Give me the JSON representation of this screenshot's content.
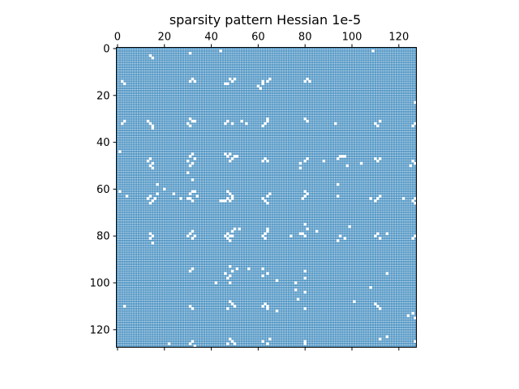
{
  "chart_data": {
    "type": "heatmap",
    "title": "sparsity pattern Hessian 1e-5",
    "xlabel": "",
    "ylabel": "",
    "matrix_size": 128,
    "xlim": [
      0,
      128
    ],
    "ylim": [
      128,
      0
    ],
    "x_ticks": [
      0,
      20,
      40,
      60,
      80,
      100,
      120
    ],
    "y_ticks": [
      0,
      20,
      40,
      60,
      80,
      100,
      120
    ],
    "x_axis_position": "top",
    "marker_color": "#1f77b4",
    "background_color": "#ffffff",
    "zero_entries_note": "entries not drawn are zero",
    "zero_entries": [
      [
        3,
        14
      ],
      [
        4,
        15
      ],
      [
        2,
        31
      ],
      [
        1,
        44
      ],
      [
        1,
        109
      ],
      [
        13,
        32
      ],
      [
        14,
        33
      ],
      [
        14,
        31
      ],
      [
        13,
        48
      ],
      [
        14,
        49
      ],
      [
        15,
        46
      ],
      [
        15,
        47
      ],
      [
        13,
        50
      ],
      [
        14,
        62
      ],
      [
        15,
        62
      ],
      [
        16,
        60
      ],
      [
        17,
        61
      ],
      [
        13,
        65
      ],
      [
        14,
        64
      ],
      [
        14,
        80
      ],
      [
        13,
        81
      ],
      [
        14,
        82
      ],
      [
        14,
        2
      ],
      [
        15,
        3
      ],
      [
        23,
        127
      ],
      [
        30,
        31
      ],
      [
        31,
        32
      ],
      [
        31,
        33
      ],
      [
        32,
        30
      ],
      [
        33,
        31
      ],
      [
        32,
        14
      ],
      [
        33,
        15
      ],
      [
        34,
        15
      ],
      [
        31,
        13
      ],
      [
        31,
        47
      ],
      [
        32,
        46
      ],
      [
        32,
        49
      ],
      [
        31,
        53
      ],
      [
        32,
        55
      ],
      [
        32,
        63
      ],
      [
        31,
        64
      ],
      [
        33,
        62
      ],
      [
        30,
        64
      ],
      [
        31,
        81
      ],
      [
        30,
        80
      ],
      [
        32,
        110
      ],
      [
        33,
        111
      ],
      [
        31,
        112
      ],
      [
        32,
        93
      ],
      [
        32,
        127
      ],
      [
        33,
        126
      ],
      [
        31,
        3
      ],
      [
        32,
        2
      ],
      [
        45,
        32
      ],
      [
        46,
        31
      ],
      [
        47,
        33
      ],
      [
        48,
        30
      ],
      [
        49,
        32
      ],
      [
        50,
        31
      ],
      [
        45,
        48
      ],
      [
        46,
        47
      ],
      [
        46,
        50
      ],
      [
        46,
        51
      ],
      [
        45,
        46
      ],
      [
        47,
        49
      ],
      [
        48,
        48
      ],
      [
        44,
        1
      ],
      [
        47,
        14
      ],
      [
        48,
        13
      ],
      [
        49,
        15
      ],
      [
        50,
        14
      ],
      [
        51,
        15
      ],
      [
        46,
        95
      ],
      [
        46,
        96
      ],
      [
        46,
        97
      ],
      [
        47,
        94
      ],
      [
        47,
        63
      ],
      [
        48,
        64
      ],
      [
        47,
        81
      ],
      [
        48,
        80
      ],
      [
        49,
        78
      ],
      [
        47,
        110
      ],
      [
        48,
        111
      ],
      [
        47,
        112
      ],
      [
        48,
        126
      ],
      [
        49,
        127
      ],
      [
        50,
        125
      ],
      [
        48,
        88
      ],
      [
        53,
        30
      ],
      [
        50,
        98
      ],
      [
        51,
        78
      ],
      [
        49,
        104
      ],
      [
        48,
        62
      ],
      [
        61,
        33
      ],
      [
        61,
        32
      ],
      [
        62,
        31
      ],
      [
        63,
        34
      ],
      [
        64,
        31
      ],
      [
        65,
        32
      ],
      [
        64,
        30
      ],
      [
        64,
        47
      ],
      [
        65,
        46
      ],
      [
        65,
        45
      ],
      [
        65,
        44
      ],
      [
        65,
        48
      ],
      [
        64,
        49
      ],
      [
        63,
        49
      ],
      [
        62,
        48
      ],
      [
        61,
        47
      ],
      [
        63,
        14
      ],
      [
        64,
        13
      ],
      [
        65,
        15
      ],
      [
        66,
        14
      ],
      [
        64,
        16
      ],
      [
        62,
        17
      ],
      [
        61,
        1
      ],
      [
        64,
        62
      ],
      [
        65,
        63
      ],
      [
        63,
        64
      ],
      [
        62,
        65
      ],
      [
        64,
        79
      ],
      [
        63,
        80
      ],
      [
        62,
        81
      ],
      [
        61,
        80
      ],
      [
        65,
        110
      ],
      [
        64,
        111
      ],
      [
        63,
        112
      ],
      [
        64,
        108
      ],
      [
        64,
        127
      ],
      [
        65,
        126
      ],
      [
        66,
        127
      ],
      [
        64,
        122
      ],
      [
        63,
        94
      ],
      [
        62,
        24
      ],
      [
        64,
        27
      ],
      [
        66,
        64
      ],
      [
        58,
        17
      ],
      [
        60,
        20
      ],
      [
        63,
        4
      ],
      [
        58,
        94
      ],
      [
        56,
        32
      ],
      [
        78,
        32
      ],
      [
        79,
        31
      ],
      [
        80,
        30
      ],
      [
        80,
        33
      ],
      [
        81,
        32
      ],
      [
        79,
        47
      ],
      [
        80,
        48
      ],
      [
        80,
        46
      ],
      [
        81,
        47
      ],
      [
        82,
        48
      ],
      [
        80,
        49
      ],
      [
        78,
        49
      ],
      [
        77,
        50
      ],
      [
        79,
        14
      ],
      [
        80,
        15
      ],
      [
        81,
        14
      ],
      [
        79,
        63
      ],
      [
        80,
        62
      ],
      [
        81,
        63
      ],
      [
        78,
        64
      ],
      [
        79,
        79
      ],
      [
        80,
        80
      ],
      [
        79,
        78
      ],
      [
        80,
        74
      ],
      [
        77,
        81
      ],
      [
        79,
        111
      ],
      [
        80,
        110
      ],
      [
        81,
        112
      ],
      [
        80,
        127
      ],
      [
        81,
        126
      ],
      [
        75,
        80
      ],
      [
        76,
        99
      ],
      [
        80,
        95
      ],
      [
        81,
        97
      ],
      [
        82,
        94
      ],
      [
        78,
        85
      ],
      [
        79,
        115
      ],
      [
        77,
        52
      ],
      [
        83,
        15
      ],
      [
        77,
        64
      ],
      [
        94,
        32
      ],
      [
        95,
        31
      ],
      [
        93,
        48
      ],
      [
        95,
        49
      ],
      [
        97,
        48
      ],
      [
        98,
        47
      ],
      [
        94,
        51
      ],
      [
        96,
        46
      ],
      [
        100,
        48
      ],
      [
        96,
        64
      ],
      [
        97,
        62
      ],
      [
        94,
        62
      ],
      [
        95,
        80
      ],
      [
        98,
        80
      ],
      [
        94,
        56
      ],
      [
        100,
        42
      ],
      [
        102,
        108
      ],
      [
        96,
        115
      ],
      [
        99,
        68
      ],
      [
        100,
        76
      ],
      [
        103,
        76
      ],
      [
        104,
        80
      ],
      [
        107,
        77
      ],
      [
        108,
        48
      ],
      [
        109,
        49
      ],
      [
        110,
        50
      ],
      [
        111,
        47
      ],
      [
        110,
        62
      ],
      [
        111,
        64
      ],
      [
        109,
        63
      ],
      [
        110,
        64
      ],
      [
        110,
        31
      ],
      [
        111,
        32
      ],
      [
        110,
        3
      ],
      [
        111,
        80
      ],
      [
        109,
        110
      ],
      [
        110,
        111
      ],
      [
        111,
        112
      ],
      [
        113,
        126
      ],
      [
        115,
        127
      ],
      [
        114,
        124
      ],
      [
        108,
        101
      ],
      [
        112,
        68
      ],
      [
        124,
        48
      ],
      [
        125,
        49
      ],
      [
        126,
        47
      ],
      [
        126,
        31
      ],
      [
        125,
        32
      ],
      [
        127,
        33
      ],
      [
        125,
        62
      ],
      [
        126,
        64
      ],
      [
        124,
        65
      ],
      [
        125,
        80
      ],
      [
        126,
        22
      ],
      [
        126,
        80
      ],
      [
        125,
        127
      ],
      [
        124,
        112
      ],
      [
        123,
        115
      ],
      [
        126,
        50
      ]
    ]
  }
}
